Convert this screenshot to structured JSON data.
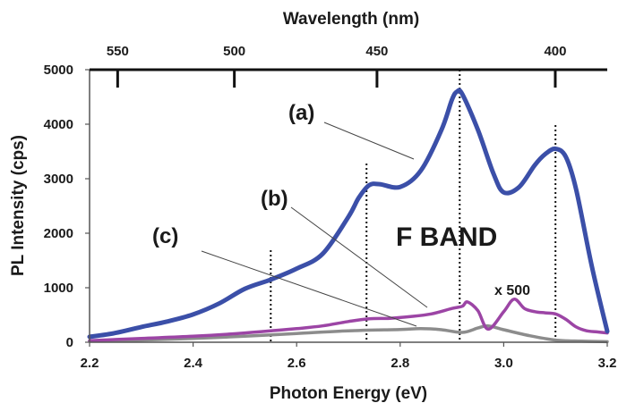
{
  "chart_data": {
    "type": "line",
    "xlabel": "Photon Energy (eV)",
    "ylabel": "PL Intensity (cps)",
    "top_axis_label": "Wavelength (nm)",
    "xlim": [
      2.2,
      3.2
    ],
    "ylim": [
      0,
      5000
    ],
    "x_ticks": [
      2.2,
      2.4,
      2.6,
      2.8,
      3.0,
      3.2
    ],
    "x_tick_labels": [
      "2.2",
      "2.4",
      "2.6",
      "2.8",
      "3.0",
      "3.2"
    ],
    "y_ticks": [
      0,
      1000,
      2000,
      3000,
      4000,
      5000
    ],
    "y_tick_labels": [
      "0",
      "1000",
      "2000",
      "3000",
      "4000",
      "5000"
    ],
    "top_ticks_nm": [
      550,
      500,
      450,
      400
    ],
    "top_tick_labels": [
      "550",
      "500",
      "450",
      "400"
    ],
    "grid": false,
    "series": [
      {
        "color": "#3b4fa8",
        "x": [
          2.2,
          2.25,
          2.3,
          2.35,
          2.4,
          2.45,
          2.5,
          2.55,
          2.6,
          2.65,
          2.7,
          2.72,
          2.74,
          2.76,
          2.8,
          2.84,
          2.88,
          2.9,
          2.91,
          2.92,
          2.95,
          2.98,
          3.0,
          3.03,
          3.06,
          3.08,
          3.1,
          3.12,
          3.14,
          3.17,
          3.2
        ],
        "values": [
          100,
          170,
          280,
          380,
          510,
          710,
          980,
          1150,
          1350,
          1620,
          2300,
          2650,
          2880,
          2900,
          2850,
          3150,
          3900,
          4450,
          4600,
          4550,
          3900,
          3100,
          2750,
          2850,
          3250,
          3450,
          3550,
          3400,
          2800,
          1400,
          200
        ]
      },
      {
        "color": "#9c45a5",
        "x": [
          2.2,
          2.3,
          2.4,
          2.5,
          2.6,
          2.65,
          2.7,
          2.74,
          2.78,
          2.82,
          2.86,
          2.9,
          2.92,
          2.93,
          2.95,
          2.97,
          3.0,
          3.02,
          3.04,
          3.06,
          3.08,
          3.1,
          3.12,
          3.14,
          3.16,
          3.18,
          3.2
        ],
        "values": [
          30,
          70,
          110,
          170,
          250,
          300,
          380,
          430,
          440,
          470,
          520,
          620,
          660,
          740,
          580,
          240,
          560,
          790,
          620,
          560,
          540,
          520,
          420,
          280,
          210,
          190,
          170
        ]
      },
      {
        "color": "#8c8c8c",
        "x": [
          2.2,
          2.3,
          2.4,
          2.5,
          2.6,
          2.7,
          2.8,
          2.84,
          2.88,
          2.92,
          2.95,
          2.97,
          3.0,
          3.05,
          3.1,
          3.15,
          3.2
        ],
        "values": [
          20,
          40,
          70,
          110,
          160,
          210,
          235,
          250,
          230,
          180,
          260,
          300,
          230,
          120,
          40,
          20,
          10
        ]
      }
    ],
    "vlines": [
      2.55,
      2.735,
      2.915,
      3.1
    ],
    "annotations": {
      "a": "(a)",
      "b": "(b)",
      "c": "(c)",
      "band": "F BAND",
      "multiplier": "x 500"
    }
  }
}
